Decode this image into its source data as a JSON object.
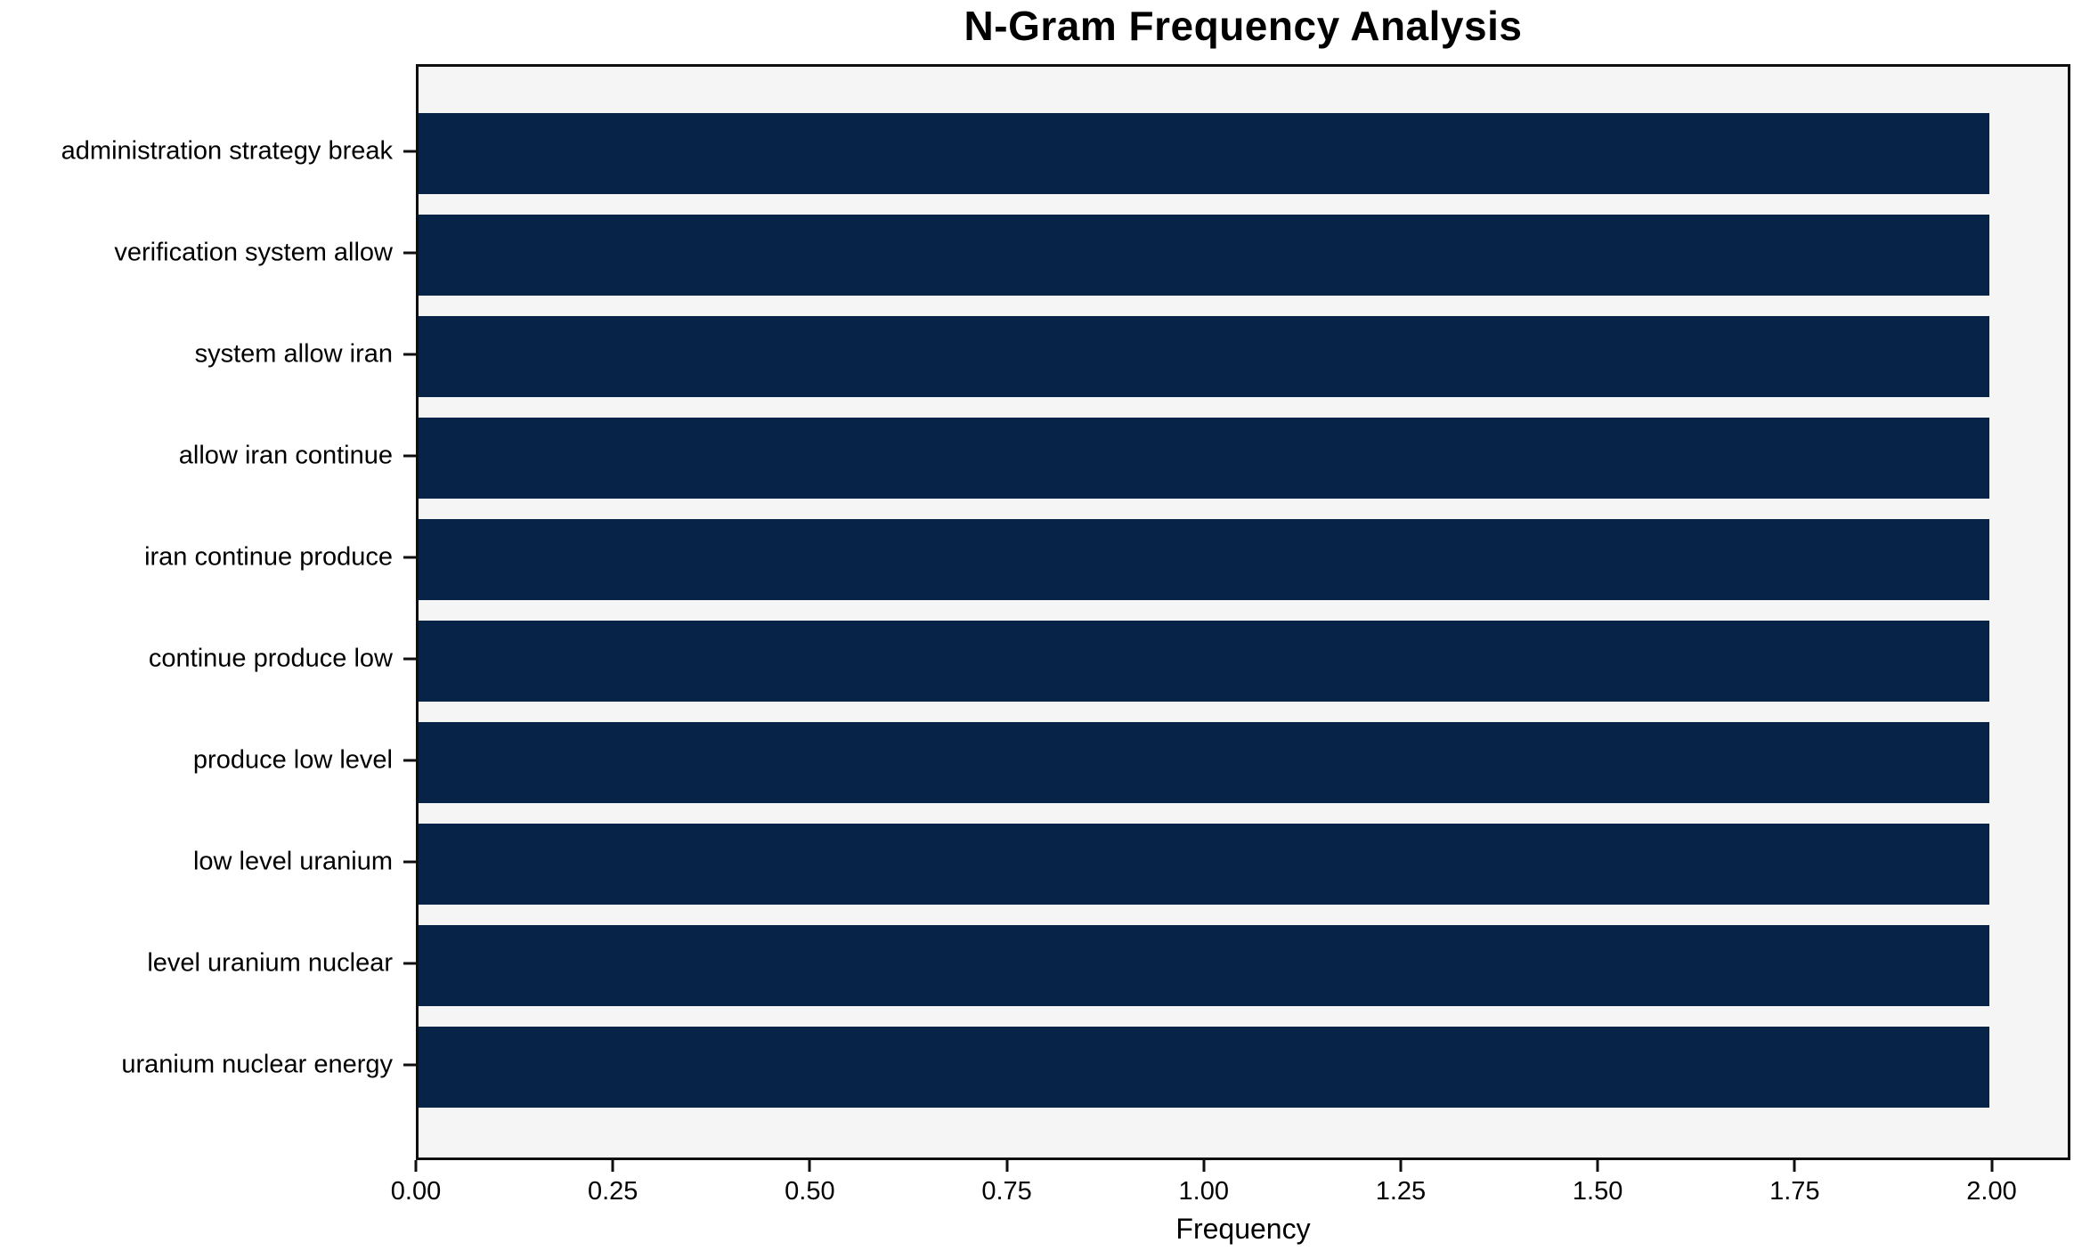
{
  "chart_data": {
    "type": "bar",
    "orientation": "horizontal",
    "title": "N-Gram Frequency Analysis",
    "xlabel": "Frequency",
    "ylabel": "",
    "categories": [
      "administration strategy break",
      "verification system allow",
      "system allow iran",
      "allow iran continue",
      "iran continue produce",
      "continue produce low",
      "produce low level",
      "low level uranium",
      "level uranium nuclear",
      "uranium nuclear energy"
    ],
    "values": [
      2,
      2,
      2,
      2,
      2,
      2,
      2,
      2,
      2,
      2
    ],
    "xlim": [
      0,
      2.1
    ],
    "xticks": [
      0,
      0.25,
      0.5,
      0.75,
      1.0,
      1.25,
      1.5,
      1.75,
      2.0
    ],
    "xtick_labels": [
      "0.00",
      "0.25",
      "0.50",
      "0.75",
      "1.00",
      "1.25",
      "1.50",
      "1.75",
      "2.00"
    ],
    "grid": false,
    "legend_position": "none",
    "bar_color": "#072347",
    "plot_background": "#f5f5f6",
    "figure_background": "#ffffff",
    "spine_color": "#0f0f0f"
  }
}
